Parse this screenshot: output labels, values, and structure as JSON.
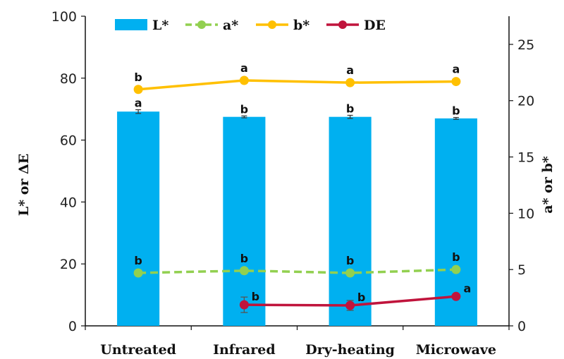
{
  "chart_data": {
    "type": "bar",
    "categories": [
      "Untreated",
      "Infrared",
      "Dry-heating",
      "Microwave"
    ],
    "y_left": {
      "label": "L* or ΔE",
      "range": [
        0,
        100
      ],
      "ticks": [
        "0",
        "20",
        "40",
        "60",
        "80",
        "100"
      ]
    },
    "y_right": {
      "label": "a* or b*",
      "range": [
        0,
        27.5
      ],
      "ticks": [
        "0",
        "5",
        "10",
        "15",
        "20",
        "25"
      ]
    },
    "legend_position": "top",
    "grid": false,
    "series": [
      {
        "name": "L*",
        "kind": "bar",
        "axis": "left",
        "color": "#00b0f0",
        "values": [
          69.2,
          67.5,
          67.5,
          67.0
        ],
        "errors": [
          0.6,
          0.3,
          0.5,
          0.3
        ],
        "labels": [
          "a",
          "b",
          "b",
          "b"
        ]
      },
      {
        "name": "a*",
        "kind": "line",
        "style": "dashed",
        "axis": "right",
        "color": "#92d050",
        "values": [
          4.7,
          4.9,
          4.7,
          5.0
        ],
        "labels": [
          "b",
          "b",
          "b",
          "b"
        ]
      },
      {
        "name": "b*",
        "kind": "line",
        "style": "solid",
        "axis": "right",
        "color": "#ffc000",
        "values": [
          21.0,
          21.8,
          21.6,
          21.7
        ],
        "labels": [
          "b",
          "a",
          "a",
          "a"
        ]
      },
      {
        "name": "DE",
        "kind": "line",
        "style": "solid",
        "axis": "left",
        "color": "#c0143c",
        "values": [
          null,
          6.8,
          6.6,
          9.5
        ],
        "errors": [
          null,
          2.5,
          1.6,
          0.5
        ],
        "labels": [
          "",
          "b",
          "b",
          "a"
        ]
      }
    ]
  }
}
